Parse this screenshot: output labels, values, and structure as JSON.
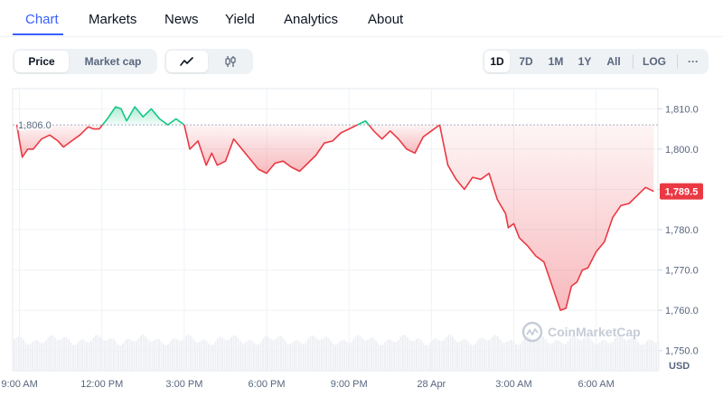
{
  "tabs": [
    "Chart",
    "Markets",
    "News",
    "Yield",
    "Analytics",
    "About"
  ],
  "active_tab": "Chart",
  "metric_toggle": [
    "Price",
    "Market cap"
  ],
  "selected_metric": "Price",
  "chart_type_icons": [
    "line-chart-icon",
    "candlestick-icon"
  ],
  "range_buttons": [
    "1D",
    "7D",
    "1M",
    "1Y",
    "All"
  ],
  "selected_range": "1D",
  "log_label": "LOG",
  "more_label": "···",
  "watermark": "CoinMarketCap",
  "colors": {
    "accent": "#3861fb",
    "up": "#16c784",
    "down": "#ea3943",
    "current_tag": "#ea3943"
  },
  "chart_data": {
    "type": "line",
    "baseline": {
      "value": 1806.0,
      "label": "1,806.0"
    },
    "current": {
      "value": 1789.5,
      "label": "1,789.5"
    },
    "ylim": [
      1745,
      1815
    ],
    "y_ticks": [
      1810.0,
      1800.0,
      1790.0,
      1780.0,
      1770.0,
      1760.0,
      1750.0
    ],
    "y_tick_labels": [
      "1,810.0",
      "1,800.0",
      "1,790.0",
      "1,780.0",
      "1,770.0",
      "1,760.0",
      "1,750.0"
    ],
    "y_unit": "USD",
    "x_ticks": [
      0,
      3,
      6,
      9,
      12,
      15,
      18,
      21
    ],
    "x_tick_labels": [
      "9:00 AM",
      "12:00 PM",
      "3:00 PM",
      "6:00 PM",
      "9:00 PM",
      "28 Apr",
      "3:00 AM",
      "6:00 AM"
    ],
    "xlim": [
      -0.25,
      23.25
    ],
    "grid": true,
    "x": [
      -0.1,
      0.1,
      0.3,
      0.5,
      0.8,
      1.1,
      1.4,
      1.6,
      1.9,
      2.2,
      2.5,
      2.7,
      2.9,
      3.2,
      3.5,
      3.7,
      3.9,
      4.2,
      4.5,
      4.8,
      5.1,
      5.4,
      5.7,
      6.0,
      6.2,
      6.5,
      6.8,
      7.0,
      7.2,
      7.5,
      7.8,
      8.1,
      8.4,
      8.7,
      9.0,
      9.3,
      9.6,
      9.9,
      10.2,
      10.5,
      10.8,
      11.1,
      11.4,
      11.7,
      12.0,
      12.3,
      12.6,
      12.9,
      13.2,
      13.5,
      13.8,
      14.1,
      14.4,
      14.7,
      15.0,
      15.3,
      15.6,
      15.9,
      16.2,
      16.5,
      16.8,
      17.1,
      17.4,
      17.7,
      17.8,
      18.0,
      18.2,
      18.5,
      18.8,
      19.1,
      19.4,
      19.7,
      19.9,
      20.1,
      20.3,
      20.5,
      20.7,
      21.0,
      21.3,
      21.6,
      21.9,
      22.2,
      22.5,
      22.8,
      23.1
    ],
    "series": [
      {
        "values": [
          1806.0,
          1798.0,
          1800.0,
          1800.0,
          1802.5,
          1803.5,
          1802.0,
          1800.5,
          1802.0,
          1803.5,
          1805.5,
          1805.0,
          1805.0,
          1807.5,
          1810.5,
          1810.0,
          1807.0,
          1810.5,
          1808.0,
          1810.0,
          1807.5,
          1806.0,
          1807.5,
          1806.0,
          1800.0,
          1802.0,
          1796.0,
          1799.0,
          1796.0,
          1797.0,
          1802.5,
          1800.0,
          1797.5,
          1795.0,
          1794.0,
          1796.5,
          1797.0,
          1795.5,
          1794.5,
          1796.5,
          1798.5,
          1801.5,
          1802.0,
          1804.0,
          1805.0,
          1806.0,
          1807.0,
          1804.5,
          1802.5,
          1804.5,
          1802.5,
          1800.0,
          1799.0,
          1803.0,
          1804.5,
          1806.0,
          1796.0,
          1792.5,
          1790.0,
          1793.0,
          1792.5,
          1794.0,
          1787.5,
          1784.0,
          1780.5,
          1781.5,
          1778.0,
          1776.0,
          1773.5,
          1772.0,
          1766.0,
          1760.0,
          1760.5,
          1766.0,
          1767.0,
          1770.0,
          1770.5,
          1774.5,
          1777.0,
          1783.0,
          1786.0,
          1786.5,
          1788.5,
          1790.5,
          1789.5
        ]
      }
    ]
  }
}
